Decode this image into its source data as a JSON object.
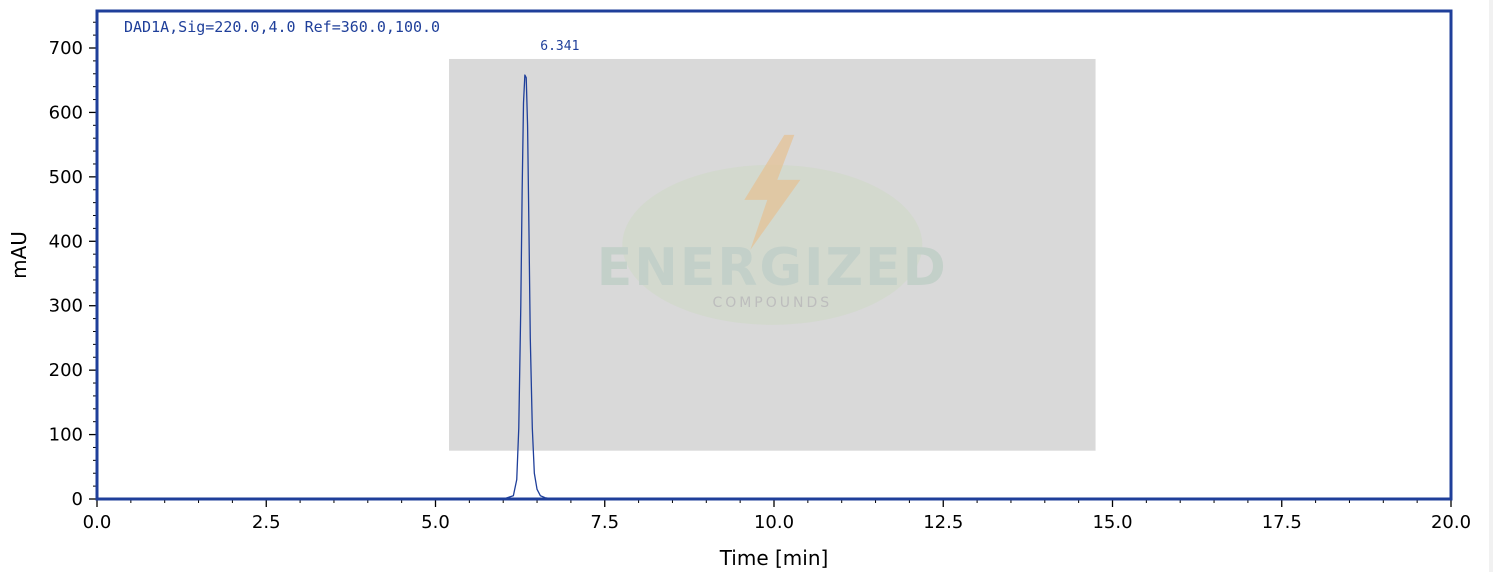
{
  "chart_data": {
    "type": "line",
    "title": "",
    "signal_label": "DAD1A,Sig=220.0,4.0 Ref=360.0,100.0",
    "xlabel": "Time [min]",
    "ylabel": "mAU",
    "xlim": [
      0,
      20
    ],
    "ylim": [
      -10,
      760
    ],
    "x_ticks": [
      0.0,
      2.5,
      5.0,
      7.5,
      10.0,
      12.5,
      15.0,
      17.5,
      20.0
    ],
    "x_tick_labels": [
      "0.0",
      "2.5",
      "5.0",
      "7.5",
      "10.0",
      "12.5",
      "15.0",
      "17.5",
      "20.0"
    ],
    "y_ticks": [
      0,
      100,
      200,
      300,
      400,
      500,
      600,
      700
    ],
    "y_tick_labels": [
      "0",
      "100",
      "200",
      "300",
      "400",
      "500",
      "600",
      "700"
    ],
    "grid": false,
    "line_color": "#1f3f9a",
    "frame_color": "#1f3f9a",
    "series": [
      {
        "x": [
          0.0,
          5.0,
          6.0,
          6.15,
          6.2,
          6.23,
          6.26,
          6.28,
          6.3,
          6.32,
          6.34,
          6.36,
          6.38,
          6.4,
          6.43,
          6.46,
          6.5,
          6.55,
          6.62,
          6.75,
          7.0,
          20.0
        ],
        "y": [
          0,
          0,
          0,
          5,
          30,
          110,
          300,
          480,
          615,
          658,
          654,
          580,
          420,
          250,
          110,
          40,
          15,
          5,
          2,
          0,
          0,
          0
        ]
      }
    ],
    "peaks": [
      {
        "rt": 6.341,
        "label": "6.341",
        "height": 660
      }
    ],
    "watermark": {
      "text": "ENERGIZED",
      "subtext": "COMPOUNDS",
      "x_range": [
        5.2,
        14.75
      ],
      "y_range": [
        75,
        683
      ]
    }
  }
}
